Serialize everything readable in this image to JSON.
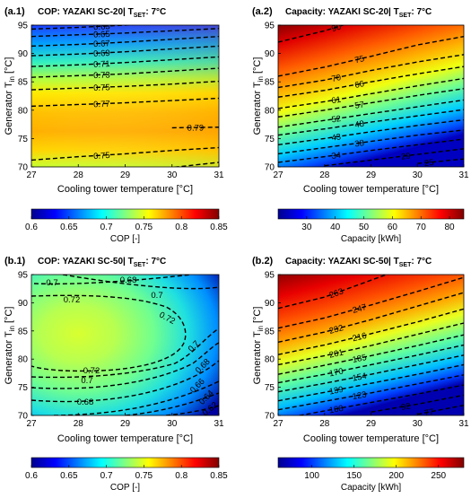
{
  "chart_data": [
    {
      "id": "a1",
      "type": "heatmap",
      "panel_label": "(a.1)",
      "title_main": "COP: YAZAKI SC-20| T",
      "title_sub": "SET",
      "title_tail": ": 7°C",
      "xlabel": "Cooling tower temperature [°C]",
      "ylabel_main": "Generator T",
      "ylabel_sub": "in",
      "ylabel_tail": " [°C]",
      "xlim": [
        27,
        31
      ],
      "ylim": [
        70,
        95
      ],
      "xticks": [
        27,
        28,
        29,
        30,
        31
      ],
      "yticks": [
        70,
        75,
        80,
        85,
        90,
        95
      ],
      "colorbar": {
        "label": "COP [-]",
        "range": [
          0.6,
          0.85
        ],
        "ticks": [
          0.6,
          0.65,
          0.7,
          0.75,
          0.8,
          0.85
        ],
        "tick_labels": [
          "0.6",
          "0.65",
          "0.7",
          "0.75",
          "0.8",
          "0.85"
        ]
      },
      "contours": [
        {
          "label": "0.63",
          "ys": [
            94.3,
            94.6,
            95.0,
            95.5,
            96.0
          ]
        },
        {
          "label": "0.65",
          "ys": [
            93.0,
            93.3,
            93.6,
            94.0,
            94.4
          ]
        },
        {
          "label": "0.67",
          "ys": [
            91.3,
            91.6,
            92.0,
            92.5,
            93.0
          ]
        },
        {
          "label": "0.69",
          "ys": [
            89.6,
            89.9,
            90.3,
            90.8,
            91.3
          ]
        },
        {
          "label": "0.71",
          "ys": [
            87.7,
            88.0,
            88.4,
            88.9,
            89.4
          ]
        },
        {
          "label": "0.73",
          "ys": [
            85.8,
            86.1,
            86.4,
            86.9,
            87.4
          ]
        },
        {
          "label": "0.75",
          "ys": [
            83.6,
            83.9,
            84.2,
            84.6,
            85.1
          ]
        },
        {
          "label": "0.77",
          "ys": [
            80.7,
            81.0,
            81.3,
            81.7,
            82.1
          ]
        },
        {
          "label": "0.79",
          "ys": [
            null,
            null,
            null,
            76.9,
            77.0
          ]
        },
        {
          "label": "0.75",
          "ys": [
            71.2,
            71.8,
            72.3,
            72.9,
            73.4
          ]
        },
        {
          "label": "0.7",
          "ys": [
            68.0,
            68.6,
            69.2,
            69.9,
            70.8
          ]
        }
      ]
    },
    {
      "id": "a2",
      "type": "heatmap",
      "panel_label": "(a.2)",
      "title_main": "Capacity: YAZAKI SC-20| T",
      "title_sub": "SET",
      "title_tail": ": 7°C",
      "xlabel": "Cooling tower temperature [°C]",
      "ylabel_main": "Generator T",
      "ylabel_sub": "in",
      "ylabel_tail": " [°C]",
      "xlim": [
        27,
        31
      ],
      "ylim": [
        70,
        95
      ],
      "xticks": [
        27,
        28,
        29,
        30,
        31
      ],
      "yticks": [
        70,
        75,
        80,
        85,
        90,
        95
      ],
      "colorbar": {
        "label": "Capacity [kWh]",
        "range": [
          20,
          85
        ],
        "ticks": [
          30,
          40,
          50,
          60,
          70,
          80
        ],
        "tick_labels": [
          "30",
          "40",
          "50",
          "60",
          "70",
          "80"
        ]
      },
      "contours": [
        {
          "label": "90",
          "ys": [
            92.0,
            94.0,
            96.5,
            99.0,
            101.0
          ]
        },
        {
          "label": "75",
          "ys": [
            86.0,
            87.6,
            89.5,
            91.5,
            93.0
          ]
        },
        {
          "label": "70",
          "ys": [
            84.0,
            85.3,
            87.0,
            88.5,
            89.8
          ]
        },
        {
          "label": "66",
          "ys": [
            82.3,
            83.5,
            85.0,
            86.4,
            87.7
          ]
        },
        {
          "label": "61",
          "ys": [
            80.3,
            81.5,
            82.9,
            84.3,
            85.6
          ]
        },
        {
          "label": "57",
          "ys": [
            78.8,
            80.0,
            81.3,
            82.6,
            83.8
          ]
        },
        {
          "label": "52",
          "ys": [
            77.0,
            78.2,
            79.4,
            80.6,
            81.8
          ]
        },
        {
          "label": "48",
          "ys": [
            75.6,
            76.7,
            77.9,
            79.0,
            80.1
          ]
        },
        {
          "label": "43",
          "ys": [
            73.9,
            75.0,
            76.2,
            77.3,
            78.3
          ]
        },
        {
          "label": "38",
          "ys": [
            72.3,
            73.4,
            74.5,
            75.6,
            76.5
          ]
        },
        {
          "label": "34",
          "ys": [
            70.8,
            71.8,
            72.9,
            73.9,
            74.9
          ]
        },
        {
          "label": "29",
          "ys": [
            null,
            70.2,
            71.2,
            72.2,
            73.2
          ]
        },
        {
          "label": "25",
          "ys": [
            null,
            null,
            null,
            70.6,
            71.4
          ]
        }
      ]
    },
    {
      "id": "b1",
      "type": "heatmap",
      "panel_label": "(b.1)",
      "title_main": "COP: YAZAKI SC-50| T",
      "title_sub": "SET",
      "title_tail": ": 7°C",
      "xlabel": "Cooling tower temperature [°C]",
      "ylabel_main": "Generator T",
      "ylabel_sub": "in",
      "ylabel_tail": " [°C]",
      "xlim": [
        27,
        31
      ],
      "ylim": [
        70,
        95
      ],
      "xticks": [
        27,
        28,
        29,
        30,
        31
      ],
      "yticks": [
        70,
        75,
        80,
        85,
        90,
        95
      ],
      "colorbar": {
        "label": "COP [-]",
        "range": [
          0.6,
          0.85
        ],
        "ticks": [
          0.6,
          0.65,
          0.7,
          0.75,
          0.8,
          0.85
        ],
        "tick_labels": [
          "0.6",
          "0.65",
          "0.7",
          "0.75",
          "0.8",
          "0.85"
        ]
      },
      "contour_labels": [
        "0.7",
        "0.68",
        "0.72",
        "0.7",
        "0.72",
        "0.72",
        "0.7",
        "0.68",
        "0.66",
        "0.7",
        "0.68",
        "0.64",
        "0.62"
      ]
    },
    {
      "id": "b2",
      "type": "heatmap",
      "panel_label": "(b.2)",
      "title_main": "Capacity: YAZAKI SC-50| T",
      "title_sub": "SET",
      "title_tail": ": 7°C",
      "xlabel": "Cooling tower temperature [°C]",
      "ylabel_main": "Generator T",
      "ylabel_sub": "in",
      "ylabel_tail": " [°C]",
      "xlim": [
        27,
        31
      ],
      "ylim": [
        70,
        95
      ],
      "xticks": [
        27,
        28,
        29,
        30,
        31
      ],
      "yticks": [
        70,
        75,
        80,
        85,
        90,
        95
      ],
      "colorbar": {
        "label": "Capacity [kWh]",
        "range": [
          60,
          280
        ],
        "ticks": [
          100,
          150,
          200,
          250
        ],
        "tick_labels": [
          "100",
          "150",
          "200",
          "250"
        ]
      },
      "contours": [
        {
          "label": "263",
          "ys": [
            89.0,
            91.0,
            94.0,
            97.0,
            100.0
          ]
        },
        {
          "label": "247",
          "ys": [
            85.5,
            87.3,
            89.6,
            92.0,
            94.5
          ]
        },
        {
          "label": "232",
          "ys": [
            83.0,
            84.8,
            87.0,
            89.4,
            91.8
          ]
        },
        {
          "label": "216",
          "ys": [
            80.8,
            82.5,
            84.5,
            86.6,
            88.9
          ]
        },
        {
          "label": "201",
          "ys": [
            79.0,
            80.6,
            82.4,
            84.4,
            86.4
          ]
        },
        {
          "label": "185",
          "ys": [
            77.3,
            78.9,
            80.6,
            82.4,
            84.3
          ]
        },
        {
          "label": "170",
          "ys": [
            75.8,
            77.3,
            79.0,
            80.7,
            82.5
          ]
        },
        {
          "label": "154",
          "ys": [
            74.2,
            75.7,
            77.3,
            79.0,
            80.7
          ]
        },
        {
          "label": "139",
          "ys": [
            72.6,
            74.1,
            75.7,
            77.3,
            79.0
          ]
        },
        {
          "label": "123",
          "ys": [
            71.0,
            72.5,
            74.0,
            75.6,
            77.2
          ]
        },
        {
          "label": "108",
          "ys": [
            69.3,
            70.8,
            72.3,
            73.8,
            75.4
          ]
        },
        {
          "label": "92",
          "ys": [
            null,
            null,
            70.6,
            72.0,
            73.6
          ]
        },
        {
          "label": "77",
          "ys": [
            null,
            null,
            null,
            70.2,
            71.8
          ]
        }
      ]
    }
  ]
}
